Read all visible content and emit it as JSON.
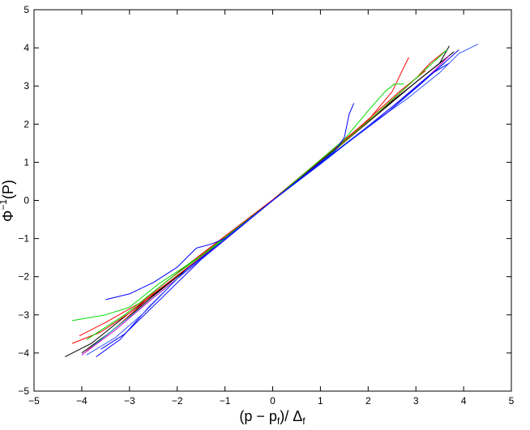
{
  "chart_data": {
    "type": "line",
    "xlabel": "(p − p",
    "xlabel_sub": "f",
    "xlabel_rest": ")/ Δ",
    "xlabel_sub2": "f",
    "ylabel": "Φ",
    "ylabel_sup": "−1",
    "ylabel_rest": "(P)",
    "xlim": [
      -5,
      5
    ],
    "ylim": [
      -5,
      5
    ],
    "xticks": [
      -5,
      -4,
      -3,
      -2,
      -1,
      0,
      1,
      2,
      3,
      4,
      5
    ],
    "yticks": [
      -5,
      -4,
      -3,
      -2,
      -1,
      0,
      1,
      2,
      3,
      4,
      5
    ],
    "grid": false,
    "series": [
      {
        "color": "#000000",
        "points": [
          [
            -4.35,
            -4.1
          ],
          [
            -3.8,
            -3.75
          ],
          [
            -3.0,
            -2.95
          ],
          [
            -2.0,
            -2.0
          ],
          [
            -1.0,
            -1.0
          ],
          [
            0,
            0
          ],
          [
            1.0,
            1.0
          ],
          [
            2.0,
            2.05
          ],
          [
            3.0,
            3.1
          ],
          [
            3.5,
            3.6
          ],
          [
            3.7,
            4.05
          ]
        ]
      },
      {
        "color": "#000000",
        "points": [
          [
            -4.0,
            -4.0
          ],
          [
            -3.4,
            -3.45
          ],
          [
            -2.5,
            -2.5
          ],
          [
            -1.5,
            -1.5
          ],
          [
            0,
            0
          ],
          [
            1.5,
            1.55
          ],
          [
            2.6,
            2.7
          ],
          [
            3.4,
            3.5
          ],
          [
            3.8,
            3.9
          ]
        ]
      },
      {
        "color": "#ff0000",
        "points": [
          [
            -4.2,
            -3.75
          ],
          [
            -3.6,
            -3.45
          ],
          [
            -3.0,
            -2.95
          ],
          [
            -2.2,
            -2.1
          ],
          [
            -1.0,
            -0.95
          ],
          [
            0,
            0
          ],
          [
            1.0,
            1.05
          ],
          [
            2.0,
            2.1
          ],
          [
            2.5,
            2.85
          ],
          [
            2.75,
            3.5
          ],
          [
            2.85,
            3.75
          ]
        ]
      },
      {
        "color": "#ff0000",
        "points": [
          [
            -3.9,
            -3.95
          ],
          [
            -3.3,
            -3.35
          ],
          [
            -2.5,
            -2.45
          ],
          [
            -1.2,
            -1.2
          ],
          [
            0,
            0
          ],
          [
            1.2,
            1.2
          ],
          [
            2.3,
            2.4
          ],
          [
            3.0,
            3.2
          ],
          [
            3.3,
            3.6
          ],
          [
            3.6,
            3.9
          ]
        ]
      },
      {
        "color": "#ff0000",
        "points": [
          [
            -4.05,
            -3.55
          ],
          [
            -3.5,
            -3.2
          ],
          [
            -2.8,
            -2.7
          ],
          [
            -1.8,
            -1.7
          ],
          [
            0,
            0.02
          ],
          [
            1.8,
            1.9
          ],
          [
            2.7,
            2.9
          ],
          [
            3.2,
            3.4
          ]
        ]
      },
      {
        "color": "#00dd00",
        "points": [
          [
            -4.2,
            -3.15
          ],
          [
            -3.5,
            -3.0
          ],
          [
            -3.0,
            -2.8
          ],
          [
            -2.4,
            -2.2
          ],
          [
            -1.5,
            -1.45
          ],
          [
            0,
            0
          ],
          [
            1.5,
            1.6
          ],
          [
            2.0,
            2.35
          ],
          [
            2.35,
            2.85
          ],
          [
            2.55,
            3.05
          ],
          [
            2.75,
            3.05
          ]
        ]
      },
      {
        "color": "#00dd00",
        "points": [
          [
            -3.9,
            -3.65
          ],
          [
            -3.1,
            -3.0
          ],
          [
            -2.2,
            -2.1
          ],
          [
            -1.0,
            -1.0
          ],
          [
            0,
            0
          ],
          [
            1.0,
            1.0
          ],
          [
            2.2,
            2.3
          ],
          [
            3.0,
            3.2
          ],
          [
            3.65,
            3.95
          ]
        ]
      },
      {
        "color": "#00cccc",
        "points": [
          [
            -3.8,
            -3.85
          ],
          [
            -3.0,
            -3.05
          ],
          [
            -2.0,
            -2.05
          ],
          [
            -1.0,
            -1.02
          ],
          [
            0,
            0
          ],
          [
            1.0,
            0.98
          ],
          [
            2.0,
            1.95
          ],
          [
            3.0,
            2.95
          ],
          [
            3.6,
            3.6
          ]
        ]
      },
      {
        "color": "#cc00cc",
        "points": [
          [
            -4.0,
            -4.05
          ],
          [
            -3.3,
            -3.4
          ],
          [
            -2.5,
            -2.55
          ],
          [
            -1.5,
            -1.55
          ],
          [
            0,
            0
          ],
          [
            1.5,
            1.45
          ],
          [
            2.5,
            2.45
          ],
          [
            3.3,
            3.3
          ],
          [
            3.7,
            3.8
          ]
        ]
      },
      {
        "color": "#0000ff",
        "points": [
          [
            -3.5,
            -2.6
          ],
          [
            -3.0,
            -2.45
          ],
          [
            -2.5,
            -2.15
          ],
          [
            -2.0,
            -1.75
          ],
          [
            -1.6,
            -1.25
          ],
          [
            -1.3,
            -1.15
          ],
          [
            -1.0,
            -1.0
          ],
          [
            0,
            0
          ],
          [
            1.0,
            1.0
          ],
          [
            1.3,
            1.3
          ],
          [
            1.5,
            1.65
          ],
          [
            1.6,
            2.25
          ],
          [
            1.7,
            2.55
          ]
        ]
      },
      {
        "color": "#0000ff",
        "points": [
          [
            -3.7,
            -4.1
          ],
          [
            -3.2,
            -3.65
          ],
          [
            -2.6,
            -2.8
          ],
          [
            -1.8,
            -1.8
          ],
          [
            -1.0,
            -1.02
          ],
          [
            0,
            0
          ],
          [
            1.0,
            0.97
          ],
          [
            1.8,
            1.75
          ],
          [
            2.6,
            2.55
          ],
          [
            3.3,
            3.3
          ],
          [
            3.7,
            3.6
          ]
        ]
      },
      {
        "color": "#3355ff",
        "points": [
          [
            -3.9,
            -4.05
          ],
          [
            -3.3,
            -3.6
          ],
          [
            -2.7,
            -2.95
          ],
          [
            -2.0,
            -2.05
          ],
          [
            -1.0,
            -1.02
          ],
          [
            0,
            0
          ],
          [
            1.0,
            0.95
          ],
          [
            2.0,
            1.95
          ],
          [
            2.8,
            2.65
          ],
          [
            3.5,
            3.35
          ],
          [
            3.9,
            3.85
          ],
          [
            4.3,
            4.1
          ]
        ]
      },
      {
        "color": "#0000ff",
        "points": [
          [
            -3.6,
            -3.9
          ],
          [
            -3.1,
            -3.5
          ],
          [
            -2.4,
            -2.65
          ],
          [
            -1.5,
            -1.55
          ],
          [
            0,
            0
          ],
          [
            1.5,
            1.45
          ],
          [
            2.4,
            2.3
          ],
          [
            3.1,
            3.05
          ],
          [
            3.9,
            3.95
          ]
        ]
      }
    ]
  }
}
